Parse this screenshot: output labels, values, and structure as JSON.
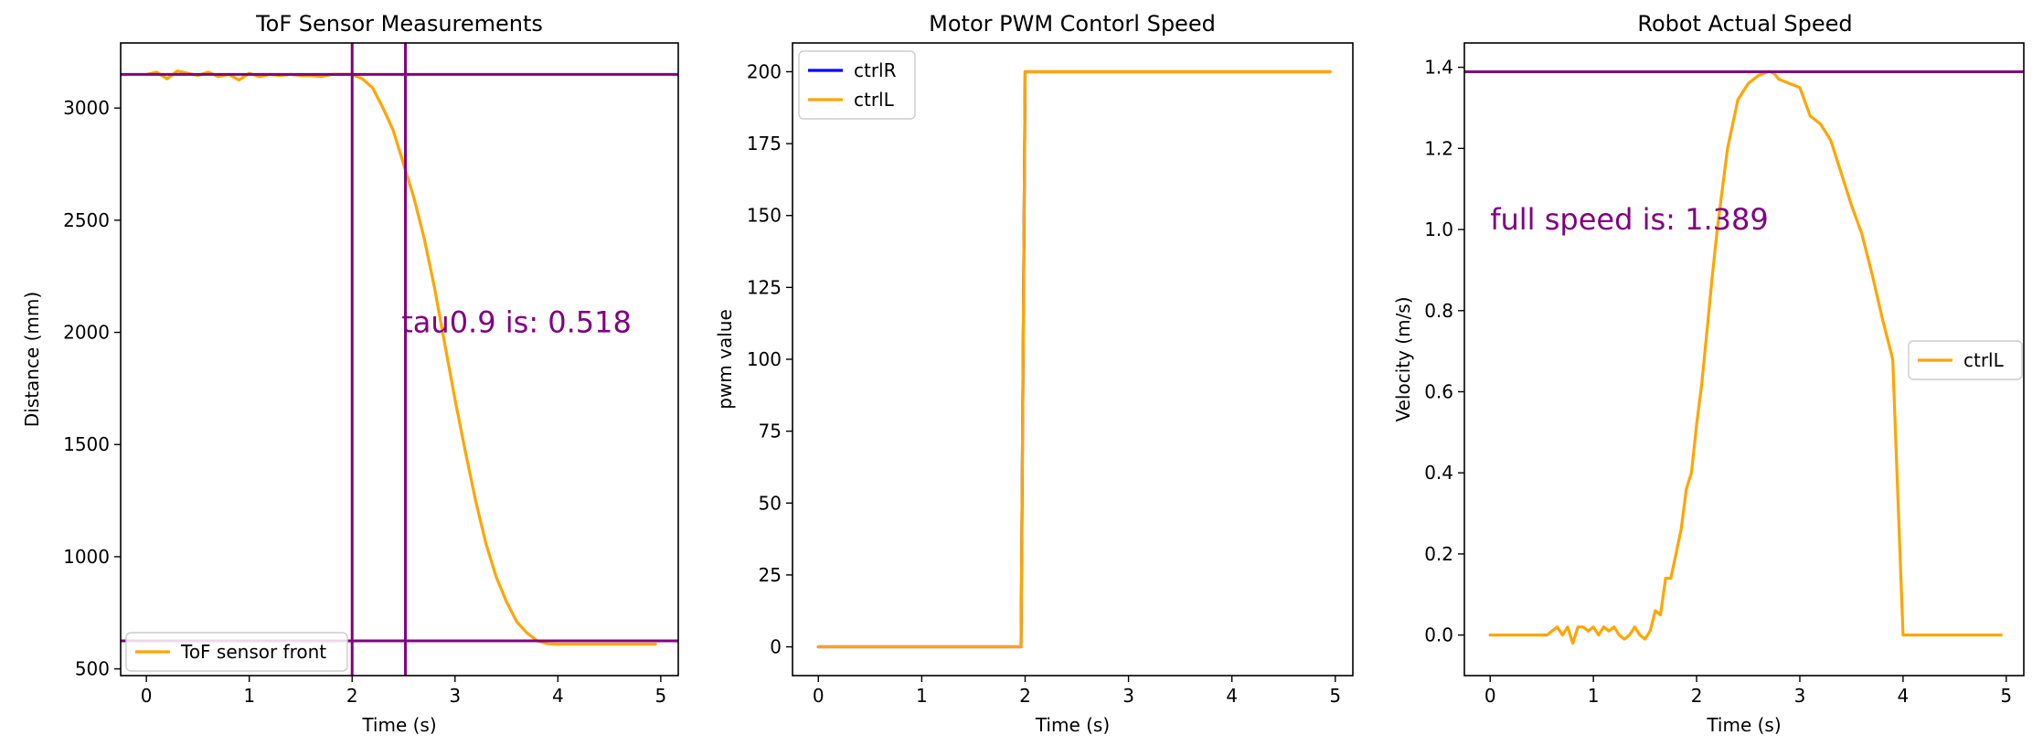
{
  "chart_data": [
    {
      "type": "line",
      "title": "ToF Sensor Measurements",
      "xlabel": "Time (s)",
      "ylabel": "Distance (mm)",
      "xlim": [
        -0.25,
        5.17
      ],
      "ylim": [
        470,
        3290
      ],
      "xticks": [
        0,
        1,
        2,
        3,
        4,
        5
      ],
      "yticks": [
        500,
        1000,
        1500,
        2000,
        2500,
        3000
      ],
      "series": [
        {
          "name": "ToF sensor front",
          "color": "#ffa500",
          "x": [
            0,
            0.1,
            0.2,
            0.3,
            0.4,
            0.5,
            0.6,
            0.7,
            0.8,
            0.9,
            1.0,
            1.1,
            1.2,
            1.3,
            1.4,
            1.5,
            1.6,
            1.7,
            1.8,
            1.9,
            2.0,
            2.1,
            2.2,
            2.3,
            2.4,
            2.5,
            2.6,
            2.7,
            2.8,
            2.9,
            3.0,
            3.1,
            3.2,
            3.3,
            3.4,
            3.5,
            3.6,
            3.7,
            3.8,
            3.9,
            4.0,
            4.2,
            4.4,
            4.6,
            4.8,
            4.95
          ],
          "y": [
            3150,
            3160,
            3130,
            3165,
            3155,
            3145,
            3160,
            3140,
            3150,
            3125,
            3155,
            3140,
            3150,
            3145,
            3150,
            3145,
            3145,
            3140,
            3150,
            3150,
            3150,
            3130,
            3090,
            3000,
            2900,
            2750,
            2600,
            2420,
            2200,
            1950,
            1700,
            1470,
            1250,
            1060,
            910,
            800,
            710,
            660,
            625,
            612,
            610,
            610,
            610,
            610,
            610,
            610
          ]
        }
      ],
      "hlines": [
        {
          "y": 3150,
          "color": "#800080"
        },
        {
          "y": 625,
          "color": "#800080"
        }
      ],
      "vlines": [
        {
          "x": 2.0,
          "color": "#800080"
        },
        {
          "x": 2.518,
          "color": "#800080"
        }
      ],
      "annotation": {
        "text": "tau0.9 is: 0.518",
        "x": 2.48,
        "y": 2000,
        "color": "#800080"
      },
      "legend_position": "lower-left"
    },
    {
      "type": "line",
      "title": "Motor PWM Contorl Speed",
      "xlabel": "Time (s)",
      "ylabel": "pwm value",
      "xlim": [
        -0.25,
        5.17
      ],
      "ylim": [
        -10,
        210
      ],
      "xticks": [
        0,
        1,
        2,
        3,
        4,
        5
      ],
      "yticks": [
        0,
        25,
        50,
        75,
        100,
        125,
        150,
        175,
        200
      ],
      "series": [
        {
          "name": "ctrlR",
          "color": "#0000ff",
          "x": [
            0,
            1.96,
            2.0,
            4.95
          ],
          "y": [
            0,
            0,
            200,
            200
          ]
        },
        {
          "name": "ctrlL",
          "color": "#ffa500",
          "x": [
            0,
            1.96,
            2.0,
            4.95
          ],
          "y": [
            0,
            0,
            200,
            200
          ]
        }
      ],
      "legend_position": "upper-left"
    },
    {
      "type": "line",
      "title": "Robot Actual Speed",
      "xlabel": "Time (s)",
      "ylabel": "Velocity (m/s)",
      "xlim": [
        -0.25,
        5.17
      ],
      "ylim": [
        -0.1,
        1.46
      ],
      "xticks": [
        0,
        1,
        2,
        3,
        4,
        5
      ],
      "yticks": [
        0.0,
        0.2,
        0.4,
        0.6,
        0.8,
        1.0,
        1.2,
        1.4
      ],
      "series": [
        {
          "name": "ctrlL",
          "color": "#ffa500",
          "x": [
            0,
            0.2,
            0.4,
            0.55,
            0.6,
            0.65,
            0.7,
            0.75,
            0.8,
            0.85,
            0.9,
            0.95,
            1.0,
            1.05,
            1.1,
            1.15,
            1.2,
            1.25,
            1.3,
            1.35,
            1.4,
            1.45,
            1.5,
            1.55,
            1.6,
            1.65,
            1.7,
            1.75,
            1.8,
            1.85,
            1.9,
            1.95,
            2.0,
            2.05,
            2.1,
            2.15,
            2.2,
            2.3,
            2.4,
            2.5,
            2.6,
            2.7,
            2.75,
            2.8,
            2.9,
            3.0,
            3.1,
            3.2,
            3.3,
            3.4,
            3.5,
            3.6,
            3.7,
            3.8,
            3.9,
            4.0,
            4.03,
            4.2,
            4.5,
            4.8,
            4.95
          ],
          "y": [
            0.0,
            0.0,
            0.0,
            0.0,
            0.01,
            0.02,
            0.0,
            0.02,
            -0.02,
            0.02,
            0.02,
            0.01,
            0.02,
            0.0,
            0.02,
            0.01,
            0.02,
            0.0,
            -0.01,
            0.0,
            0.02,
            0.0,
            -0.01,
            0.01,
            0.06,
            0.05,
            0.14,
            0.14,
            0.2,
            0.26,
            0.36,
            0.4,
            0.52,
            0.62,
            0.75,
            0.88,
            1.0,
            1.2,
            1.32,
            1.36,
            1.38,
            1.39,
            1.385,
            1.37,
            1.36,
            1.35,
            1.28,
            1.26,
            1.22,
            1.14,
            1.06,
            0.99,
            0.89,
            0.78,
            0.68,
            0.0,
            0.0,
            0.0,
            0.0,
            0.0,
            0.0
          ]
        }
      ],
      "hlines": [
        {
          "y": 1.389,
          "color": "#800080"
        }
      ],
      "annotation": {
        "text": "full speed is: 1.389",
        "x": 0.0,
        "y": 1.0,
        "color": "#800080"
      },
      "legend_position": "center-right"
    }
  ]
}
